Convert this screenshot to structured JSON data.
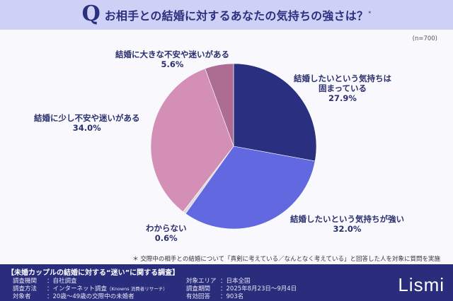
{
  "header": {
    "q_mark": "Q",
    "title": "お相手との結婚に対するあなたの気持ちの強さは？",
    "title_mark": "*"
  },
  "sample_size": "(n=700)",
  "chart_data": {
    "type": "pie",
    "title": "お相手との結婚に対するあなたの気持ちの強さは？",
    "n": 700,
    "start_angle": "12 o'clock, clockwise",
    "slices": [
      {
        "label": "結婚したいという気持ちは固まっている",
        "value": 27.9,
        "display": "27.9%",
        "color": "#2b2f7f"
      },
      {
        "label": "結婚したいという気持ちが強い",
        "value": 32.0,
        "display": "32.0%",
        "color": "#6268df"
      },
      {
        "label": "わからない",
        "value": 0.6,
        "display": "0.6%",
        "color": "#d9d9df"
      },
      {
        "label": "結婚に少し不安や迷いがある",
        "value": 34.0,
        "display": "34.0%",
        "color": "#d48fb6"
      },
      {
        "label": "結婚に大きな不安や迷いがある",
        "value": 5.6,
        "display": "5.6%",
        "color": "#ad6d93"
      }
    ]
  },
  "labels": {
    "s1_line1": "結婚したいという気持ちは",
    "s1_line2": "固まっている",
    "s1_pct": "27.9%",
    "s2_line1": "結婚したいという気持ちが強い",
    "s2_pct": "32.0%",
    "s3_line1": "わからない",
    "s3_pct": "0.6%",
    "s4_line1": "結婚に少し不安や迷いがある",
    "s4_pct": "34.0%",
    "s5_line1": "結婚に大きな不安や迷いがある",
    "s5_pct": "5.6%"
  },
  "note": "＊ 交際中の相手との結婚について「真剣に考えている／なんとなく考えている」と回答した人を対象に質問を実施",
  "footer": {
    "title": "【未婚カップルの結婚に対する“迷い”に関する調査】",
    "left": [
      {
        "key": "調査機関",
        "value": "：自社調査",
        "extra": ""
      },
      {
        "key": "調査方法",
        "value": "：インターネット調査",
        "extra": "（Knowns 消費者リサーチ）"
      },
      {
        "key": "対象者",
        "value": "：20歳～49歳の交際中の未婚者",
        "extra": ""
      }
    ],
    "right": [
      {
        "key": "対象エリア",
        "value": "：日本全国"
      },
      {
        "key": "調査期間",
        "value": "：2025年8月23日～9月4日"
      },
      {
        "key": "有効回答",
        "value": "：903名"
      }
    ],
    "logo": "Lismi"
  }
}
